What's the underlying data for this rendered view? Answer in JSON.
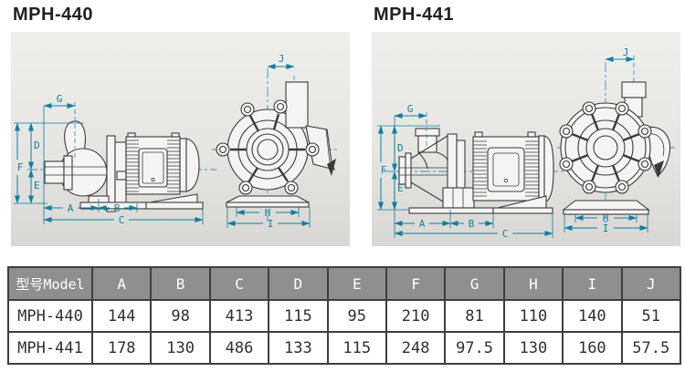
{
  "diagrams": [
    {
      "title": "MPH-440",
      "side_dimensions": [
        "G",
        "F",
        "D",
        "E",
        "A",
        "B",
        "C"
      ],
      "front_dimensions": [
        "J",
        "H",
        "I"
      ]
    },
    {
      "title": "MPH-441",
      "side_dimensions": [
        "G",
        "F",
        "D",
        "E",
        "A",
        "B",
        "C"
      ],
      "front_dimensions": [
        "J",
        "H",
        "I"
      ]
    }
  ],
  "dim_labels": {
    "A": "A",
    "B": "B",
    "C": "C",
    "D": "D",
    "E": "E",
    "F": "F",
    "G": "G",
    "H": "H",
    "I": "I",
    "J": "J"
  },
  "colors": {
    "dimension_line": "#0e7f9f",
    "centerline": "#2a9bc0",
    "drawing_line": "#3a3a3a",
    "panel_background_top": "#efeeeb",
    "panel_background_bottom": "#d8d7d3",
    "table_header_background": "#8f8f8f",
    "table_header_text": "#ffffff",
    "table_border": "#3e3e3e"
  },
  "table": {
    "headers": [
      "型号Model",
      "A",
      "B",
      "C",
      "D",
      "E",
      "F",
      "G",
      "H",
      "I",
      "J"
    ],
    "rows": [
      {
        "model": "MPH-440",
        "values": [
          "144",
          "98",
          "413",
          "115",
          "95",
          "210",
          "81",
          "110",
          "140",
          "51"
        ]
      },
      {
        "model": "MPH-441",
        "values": [
          "178",
          "130",
          "486",
          "133",
          "115",
          "248",
          "97.5",
          "130",
          "160",
          "57.5"
        ]
      }
    ]
  }
}
